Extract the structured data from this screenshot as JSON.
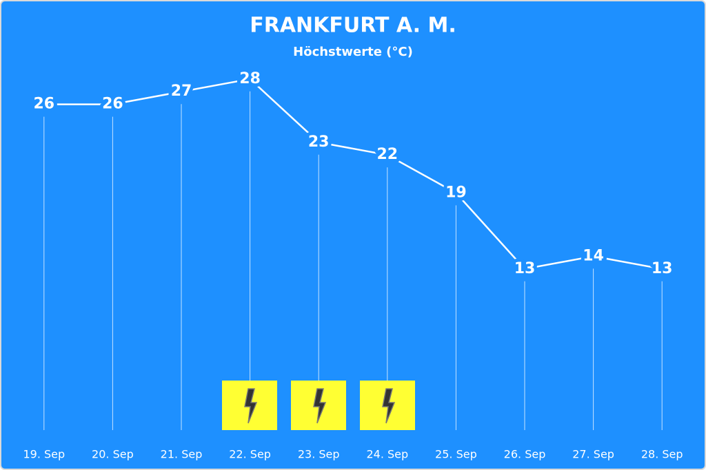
{
  "chart_data": {
    "type": "line",
    "title": "FRANKFURT A. M.",
    "subtitle": "Höchstwerte (°C)",
    "categories": [
      "19. Sep",
      "20. Sep",
      "21. Sep",
      "22. Sep",
      "23. Sep",
      "24. Sep",
      "25. Sep",
      "26. Sep",
      "27. Sep",
      "28. Sep"
    ],
    "values": [
      26,
      26,
      27,
      28,
      23,
      22,
      19,
      13,
      14,
      13
    ],
    "color": "#ffffff",
    "ylim": [
      0,
      30
    ]
  }
}
